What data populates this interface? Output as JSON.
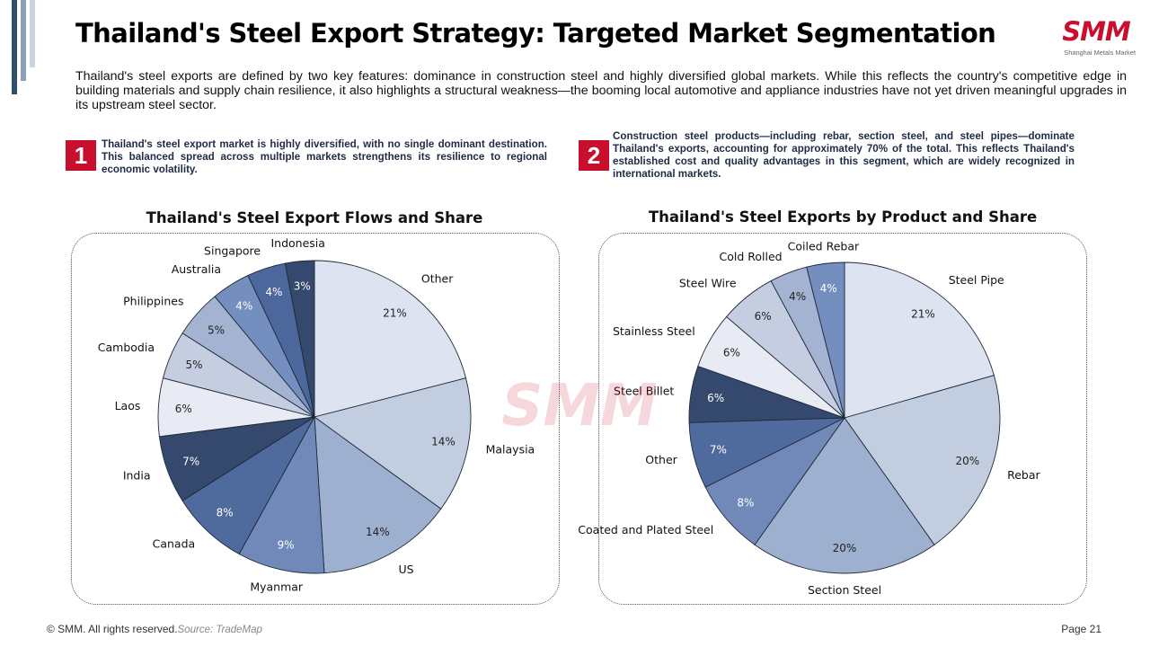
{
  "title": "Thailand's Steel Export Strategy: Targeted Market Segmentation",
  "logo": {
    "text": "SMM",
    "subtitle": "Shanghai Metals Market"
  },
  "intro": "Thailand's steel exports are defined by two key features: dominance in construction steel and highly diversified global markets. While this reflects the country's competitive edge in building materials and supply chain resilience, it also highlights a structural weakness—the booming local automotive and appliance industries have not yet driven meaningful upgrades in its upstream steel sector.",
  "key_points": [
    {
      "number": "1",
      "text": "Thailand's steel export market is highly diversified, with no single dominant destination. This balanced spread across multiple markets strengthens its resilience to regional economic volatility."
    },
    {
      "number": "2",
      "text": "Construction steel products—including rebar, section steel, and steel pipes—dominate Thailand's exports, accounting for approximately 70% of the total. This reflects Thailand's established cost and quality advantages in this segment, which are widely recognized in international markets."
    }
  ],
  "chart_data": [
    {
      "type": "pie",
      "title": "Thailand's Steel Export Flows and Share",
      "slices": [
        {
          "label": "Other",
          "value": 21,
          "display": "21%",
          "color": "#dde3f0"
        },
        {
          "label": "Malaysia",
          "value": 14,
          "display": "14%",
          "color": "#c3cde0"
        },
        {
          "label": "US",
          "value": 14,
          "display": "14%",
          "color": "#9eb0cf"
        },
        {
          "label": "Myanmar",
          "value": 9,
          "display": "9%",
          "color": "#7089b8"
        },
        {
          "label": "Canada",
          "value": 8,
          "display": "8%",
          "color": "#4f6a9c"
        },
        {
          "label": "India",
          "value": 7,
          "display": "7%",
          "color": "#35486d"
        },
        {
          "label": "Laos",
          "value": 6,
          "display": "6%",
          "color": "#e8ebf3"
        },
        {
          "label": "Cambodia",
          "value": 5,
          "display": "5%",
          "color": "#c5cee0"
        },
        {
          "label": "Philippines",
          "value": 5,
          "display": "5%",
          "color": "#a3b3d1"
        },
        {
          "label": "Australia",
          "value": 4,
          "display": "4%",
          "color": "#748ebf"
        },
        {
          "label": "Singapore",
          "value": 4,
          "display": "4%",
          "color": "#4c679c"
        },
        {
          "label": "Indonesia",
          "value": 3,
          "display": "3%",
          "color": "#35486d"
        }
      ]
    },
    {
      "type": "pie",
      "title": "Thailand's Steel Exports by Product and Share",
      "slices": [
        {
          "label": "Steel Pipe",
          "value": 21,
          "display": "21%",
          "color": "#dde3f0"
        },
        {
          "label": "Rebar",
          "value": 20,
          "display": "20%",
          "color": "#c3cde0"
        },
        {
          "label": "Section Steel",
          "value": 20,
          "display": "20%",
          "color": "#9eb0cf"
        },
        {
          "label": "Coated and Plated Steel",
          "value": 8,
          "display": "8%",
          "color": "#7089b8"
        },
        {
          "label": "Other",
          "value": 7,
          "display": "7%",
          "color": "#4f6a9c"
        },
        {
          "label": "Steel Billet",
          "value": 6,
          "display": "6%",
          "color": "#35486d"
        },
        {
          "label": "Stainless Steel",
          "value": 6,
          "display": "6%",
          "color": "#e8ebf3"
        },
        {
          "label": "Steel Wire",
          "value": 6,
          "display": "6%",
          "color": "#c5cee0"
        },
        {
          "label": "Cold Rolled",
          "value": 4,
          "display": "4%",
          "color": "#a3b3d1"
        },
        {
          "label": "Coiled Rebar",
          "value": 4,
          "display": "4%",
          "color": "#748ebf"
        }
      ]
    }
  ],
  "footer": {
    "copyright": "© SMM. All rights reserved.",
    "source": "Source: TradeMap",
    "page": "Page 21"
  },
  "colors": {
    "brand_red": "#c8102e",
    "accent_bar": "#2f4f6f"
  }
}
